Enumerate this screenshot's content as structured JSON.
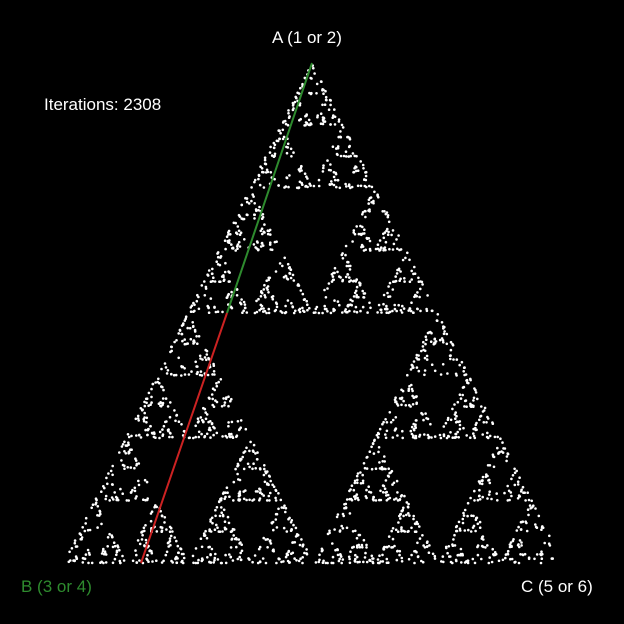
{
  "game": {
    "background_color": "#000000",
    "point_color": "#ffffff",
    "iterations_label": "Iterations:",
    "iterations_value": "2308",
    "vertices": {
      "a": {
        "label": "A (1 or 2)",
        "color": "#ffffff"
      },
      "b": {
        "label": "B (3 or 4)",
        "color": "#2e8b2e"
      },
      "c": {
        "label": "C (5 or 6)",
        "color": "#ffffff"
      }
    },
    "current_move": {
      "color": "#cc2222"
    },
    "previous_move": {
      "color": "#2e8b2e"
    }
  }
}
